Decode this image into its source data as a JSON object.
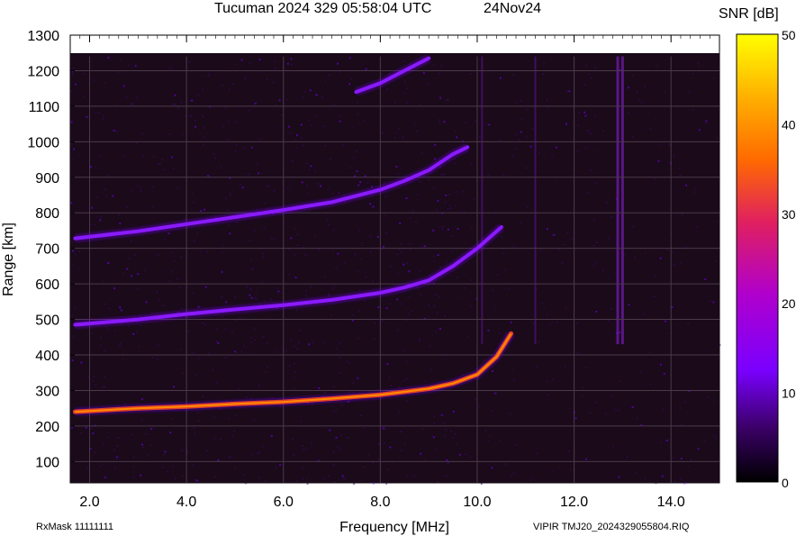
{
  "header": {
    "title": "Tucuman 2024 329 05:58:04 UTC",
    "date": "24Nov24"
  },
  "footer": {
    "rxmask": "RxMask 11111111",
    "file": "VIPIR  TMJ20_2024329055804.RIQ"
  },
  "colors": {
    "background": "#1a0a1a",
    "gridline": "#4a3a4a",
    "colormap": [
      "#000000",
      "#3a0066",
      "#7a00ff",
      "#b000cc",
      "#e02060",
      "#ff6a00",
      "#ffb000",
      "#ffff00"
    ]
  },
  "chart_data": {
    "type": "heatmap",
    "title": "Tucuman 2024 329 05:58:04 UTC",
    "subtitle": "24Nov24",
    "xlabel": "Frequency [MHz]",
    "ylabel": "Range [km]",
    "xlim": [
      1.6,
      15.0
    ],
    "ylim": [
      40,
      1300
    ],
    "x_ticks": [
      "2.0",
      "4.0",
      "6.0",
      "8.0",
      "10.0",
      "12.0",
      "14.0"
    ],
    "y_ticks": [
      "100",
      "200",
      "300",
      "400",
      "500",
      "600",
      "700",
      "800",
      "900",
      "1000",
      "1100",
      "1200",
      "1300"
    ],
    "colorbar": {
      "label": "SNR [dB]",
      "range": [
        0,
        50
      ],
      "ticks": [
        "0",
        "10",
        "20",
        "30",
        "40",
        "50"
      ]
    },
    "data_top_range": 1240,
    "traces": [
      {
        "name": "",
        "points": [
          [
            1.7,
            240
          ],
          [
            3.0,
            250
          ],
          [
            4.0,
            255
          ],
          [
            5.0,
            262
          ],
          [
            6.0,
            268
          ],
          [
            7.0,
            277
          ],
          [
            8.0,
            288
          ],
          [
            9.0,
            305
          ],
          [
            9.5,
            320
          ],
          [
            10.0,
            345
          ],
          [
            10.4,
            395
          ],
          [
            10.7,
            460
          ]
        ]
      },
      {
        "name": "",
        "points": [
          [
            1.7,
            485
          ],
          [
            3.0,
            500
          ],
          [
            4.0,
            515
          ],
          [
            5.0,
            528
          ],
          [
            6.0,
            540
          ],
          [
            7.0,
            555
          ],
          [
            8.0,
            575
          ],
          [
            8.5,
            590
          ],
          [
            9.0,
            610
          ],
          [
            9.5,
            650
          ],
          [
            10.0,
            700
          ],
          [
            10.5,
            760
          ]
        ]
      },
      {
        "name": "",
        "points": [
          [
            1.7,
            728
          ],
          [
            3.0,
            748
          ],
          [
            4.0,
            768
          ],
          [
            5.0,
            788
          ],
          [
            6.0,
            808
          ],
          [
            7.0,
            830
          ],
          [
            8.0,
            865
          ],
          [
            8.5,
            890
          ],
          [
            9.0,
            920
          ],
          [
            9.5,
            965
          ],
          [
            9.8,
            985
          ]
        ]
      },
      {
        "name": "",
        "points": [
          [
            7.5,
            1140
          ],
          [
            8.0,
            1165
          ],
          [
            8.5,
            1200
          ],
          [
            9.0,
            1235
          ]
        ]
      }
    ],
    "vertical_interference_mhz": [
      10.1,
      11.2,
      12.9,
      13.0
    ]
  }
}
